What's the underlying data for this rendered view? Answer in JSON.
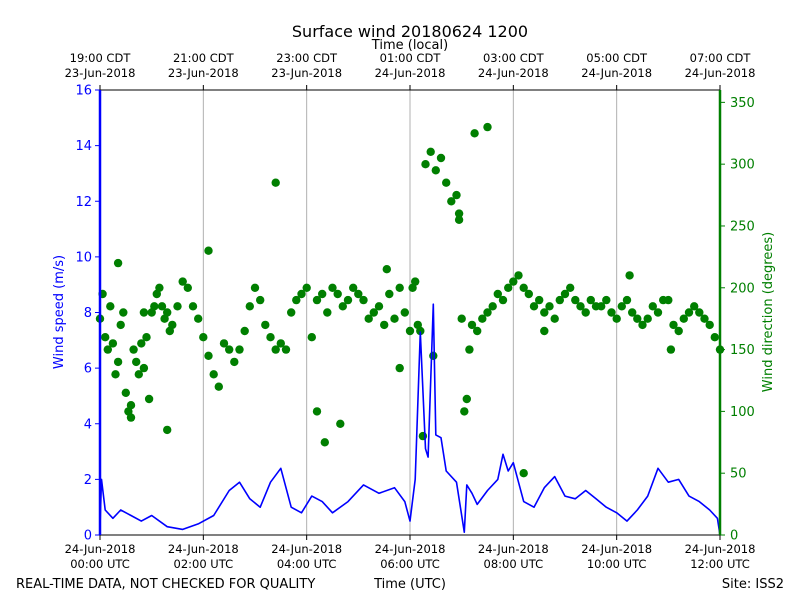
{
  "chart_data": {
    "type": "line+scatter",
    "title": "Surface wind 20180624 1200",
    "top_axis_label": "Time (local)",
    "xlabel": "Time (UTC)",
    "ylabel_left": "Wind speed (m/s)",
    "ylabel_right": "Wind direction (degrees)",
    "ylim_left": [
      0,
      16
    ],
    "ylim_right": [
      0,
      360
    ],
    "x_range_hours": [
      0,
      12
    ],
    "grid": "vertical",
    "colors": {
      "speed": "#0000ff",
      "direction": "#007f00",
      "axes": "#000000",
      "grid": "#b0b0b0"
    },
    "left_ticks": [
      0,
      2,
      4,
      6,
      8,
      10,
      12,
      14,
      16
    ],
    "right_ticks": [
      0,
      50,
      100,
      150,
      200,
      250,
      300,
      350
    ],
    "bottom_ticks": [
      {
        "h": 0,
        "line1": "24-Jun-2018",
        "line2": "00:00 UTC"
      },
      {
        "h": 2,
        "line1": "24-Jun-2018",
        "line2": "02:00 UTC"
      },
      {
        "h": 4,
        "line1": "24-Jun-2018",
        "line2": "04:00 UTC"
      },
      {
        "h": 6,
        "line1": "24-Jun-2018",
        "line2": "06:00 UTC"
      },
      {
        "h": 8,
        "line1": "24-Jun-2018",
        "line2": "08:00 UTC"
      },
      {
        "h": 10,
        "line1": "24-Jun-2018",
        "line2": "10:00 UTC"
      },
      {
        "h": 12,
        "line1": "24-Jun-2018",
        "line2": "12:00 UTC"
      }
    ],
    "top_ticks": [
      {
        "h": 0,
        "line1": "19:00 CDT",
        "line2": "23-Jun-2018"
      },
      {
        "h": 2,
        "line1": "21:00 CDT",
        "line2": "23-Jun-2018"
      },
      {
        "h": 4,
        "line1": "23:00 CDT",
        "line2": "23-Jun-2018"
      },
      {
        "h": 6,
        "line1": "01:00 CDT",
        "line2": "24-Jun-2018"
      },
      {
        "h": 8,
        "line1": "03:00 CDT",
        "line2": "24-Jun-2018"
      },
      {
        "h": 10,
        "line1": "05:00 CDT",
        "line2": "24-Jun-2018"
      },
      {
        "h": 12,
        "line1": "07:00 CDT",
        "line2": "24-Jun-2018"
      }
    ],
    "series": [
      {
        "name": "Wind speed (m/s)",
        "kind": "line",
        "axis": "left",
        "x_hours": [
          0,
          0.03,
          0.1,
          0.25,
          0.4,
          0.6,
          0.8,
          1.0,
          1.3,
          1.6,
          1.9,
          2.2,
          2.5,
          2.7,
          2.9,
          3.1,
          3.3,
          3.5,
          3.7,
          3.9,
          4.1,
          4.3,
          4.5,
          4.8,
          5.1,
          5.4,
          5.7,
          5.9,
          6.0,
          6.1,
          6.2,
          6.3,
          6.35,
          6.45,
          6.5,
          6.6,
          6.7,
          6.9,
          7.05,
          7.1,
          7.2,
          7.3,
          7.5,
          7.7,
          7.8,
          7.9,
          8.0,
          8.2,
          8.4,
          8.6,
          8.8,
          9.0,
          9.2,
          9.4,
          9.6,
          9.8,
          10.0,
          10.2,
          10.4,
          10.6,
          10.8,
          11.0,
          11.2,
          11.4,
          11.6,
          11.8,
          11.95,
          12.0
        ],
        "values": [
          0.3,
          2.0,
          0.9,
          0.6,
          0.9,
          0.7,
          0.5,
          0.7,
          0.3,
          0.2,
          0.4,
          0.7,
          1.6,
          1.9,
          1.3,
          1.0,
          1.9,
          2.4,
          1.0,
          0.8,
          1.4,
          1.2,
          0.8,
          1.2,
          1.8,
          1.5,
          1.7,
          1.2,
          0.5,
          2.0,
          7.3,
          3.1,
          2.8,
          8.3,
          3.6,
          3.5,
          2.3,
          1.9,
          0.1,
          1.8,
          1.5,
          1.1,
          1.6,
          2.0,
          2.9,
          2.3,
          2.6,
          1.2,
          1.0,
          1.7,
          2.1,
          1.4,
          1.3,
          1.6,
          1.3,
          1.0,
          0.8,
          0.5,
          0.9,
          1.4,
          2.4,
          1.9,
          2.0,
          1.4,
          1.2,
          0.9,
          0.6,
          0.0
        ]
      },
      {
        "name": "Wind direction (degrees)",
        "kind": "scatter",
        "axis": "right",
        "x_hours": [
          0.0,
          0.05,
          0.1,
          0.15,
          0.2,
          0.25,
          0.3,
          0.35,
          0.4,
          0.45,
          0.5,
          0.55,
          0.6,
          0.65,
          0.7,
          0.75,
          0.8,
          0.85,
          0.9,
          0.95,
          1.0,
          1.05,
          1.1,
          1.15,
          1.2,
          1.25,
          1.3,
          1.35,
          1.4,
          1.5,
          1.6,
          1.7,
          1.8,
          1.9,
          2.0,
          2.1,
          2.2,
          2.3,
          2.4,
          2.5,
          2.6,
          2.7,
          2.8,
          2.9,
          3.0,
          3.1,
          3.2,
          3.3,
          3.4,
          3.5,
          3.6,
          3.7,
          3.8,
          3.9,
          4.0,
          4.1,
          4.2,
          4.3,
          4.4,
          4.5,
          4.6,
          4.7,
          4.8,
          4.9,
          5.0,
          5.1,
          5.2,
          5.3,
          5.4,
          5.5,
          5.6,
          5.7,
          5.8,
          5.9,
          6.0,
          6.05,
          6.1,
          6.15,
          6.2,
          6.3,
          6.4,
          6.5,
          6.6,
          6.7,
          6.8,
          6.9,
          6.95,
          7.0,
          7.05,
          7.1,
          7.15,
          7.2,
          7.3,
          7.4,
          7.5,
          7.6,
          7.7,
          7.8,
          7.9,
          8.0,
          8.1,
          8.2,
          8.3,
          8.4,
          8.5,
          8.6,
          8.7,
          8.8,
          8.9,
          9.0,
          9.1,
          9.2,
          9.3,
          9.4,
          9.5,
          9.6,
          9.7,
          9.8,
          9.9,
          10.0,
          10.1,
          10.2,
          10.3,
          10.4,
          10.5,
          10.6,
          10.7,
          10.8,
          10.9,
          11.0,
          11.1,
          11.2,
          11.3,
          11.4,
          11.5,
          11.6,
          11.7,
          11.8,
          11.9,
          12.0,
          0.35,
          0.6,
          0.85,
          1.3,
          2.1,
          3.4,
          4.2,
          4.35,
          4.65,
          5.55,
          5.8,
          6.25,
          6.45,
          6.95,
          7.25,
          7.5,
          8.2,
          8.6,
          10.25,
          11.05
        ],
        "values": [
          175,
          195,
          160,
          150,
          185,
          155,
          130,
          140,
          170,
          180,
          115,
          100,
          105,
          150,
          140,
          130,
          155,
          180,
          160,
          110,
          180,
          185,
          195,
          200,
          185,
          175,
          180,
          165,
          170,
          185,
          205,
          200,
          185,
          175,
          160,
          145,
          130,
          120,
          155,
          150,
          140,
          150,
          165,
          185,
          200,
          190,
          170,
          160,
          150,
          155,
          150,
          180,
          190,
          195,
          200,
          160,
          190,
          195,
          180,
          200,
          195,
          185,
          190,
          200,
          195,
          190,
          175,
          180,
          185,
          170,
          195,
          175,
          200,
          180,
          165,
          200,
          205,
          170,
          165,
          300,
          310,
          295,
          305,
          285,
          270,
          275,
          260,
          175,
          100,
          110,
          150,
          170,
          165,
          175,
          180,
          185,
          195,
          190,
          200,
          205,
          210,
          200,
          195,
          185,
          190,
          180,
          185,
          175,
          190,
          195,
          200,
          190,
          185,
          180,
          190,
          185,
          185,
          190,
          180,
          175,
          185,
          190,
          180,
          175,
          170,
          175,
          185,
          180,
          190,
          190,
          170,
          165,
          175,
          180,
          185,
          180,
          175,
          170,
          160,
          150,
          220,
          95,
          135,
          85,
          230,
          285,
          100,
          75,
          90,
          215,
          135,
          80,
          145,
          255,
          325,
          330,
          50,
          165,
          210,
          150
        ]
      }
    ]
  },
  "footer": {
    "left": "REAL-TIME DATA, NOT CHECKED FOR QUALITY",
    "center": "Time (UTC)",
    "right": "Site: ISS2"
  }
}
